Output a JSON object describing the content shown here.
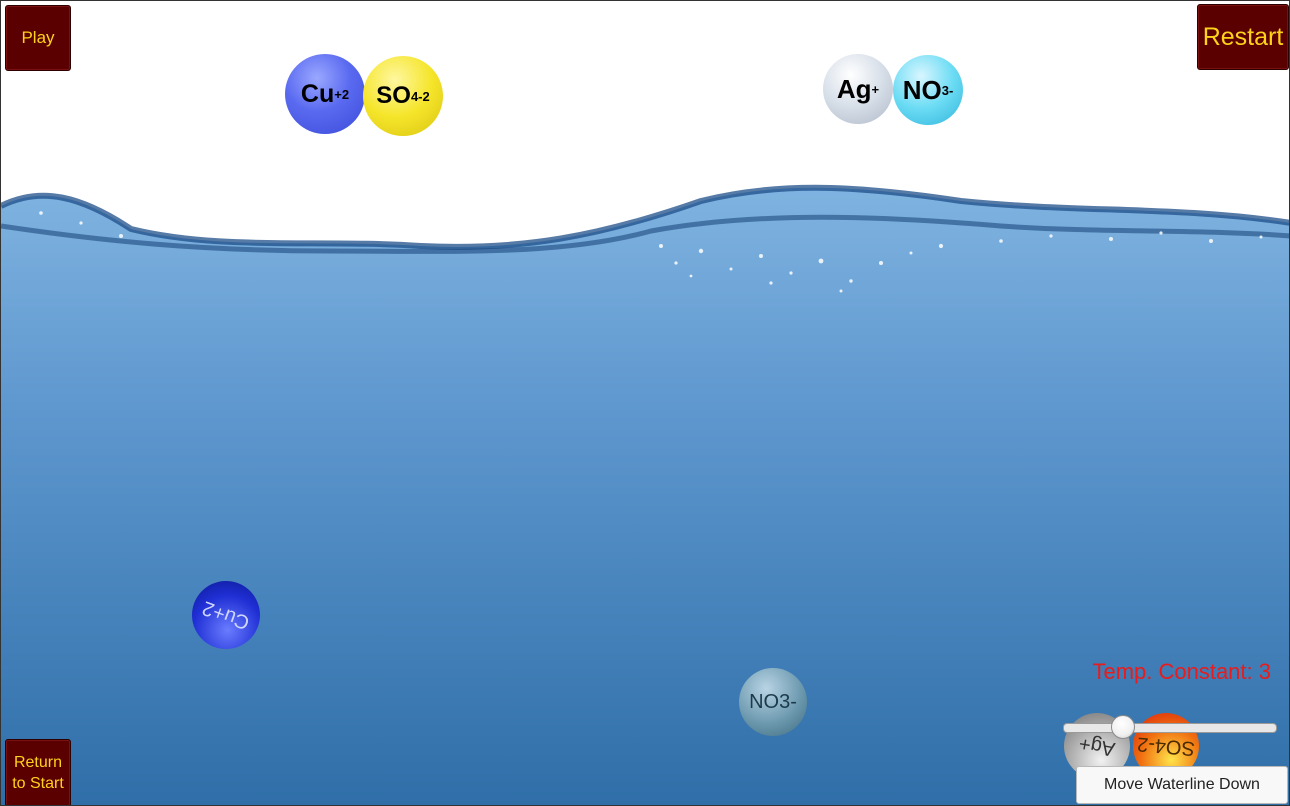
{
  "controls": {
    "play_label": "Play",
    "restart_label": "Restart",
    "return_label_line1": "Return",
    "return_label_line2": "to Start",
    "temp_label": "Temp. Constant: 3",
    "move_waterline_label": "Move Waterline Down",
    "temp_slider_fraction": 0.25
  },
  "ions_top": {
    "cu_base": "Cu",
    "cu_charge": "+2",
    "so4_base": "SO",
    "so4_sub": "4",
    "so4_charge": "-2",
    "ag_base": "Ag",
    "ag_charge": "+",
    "no3_base": "NO",
    "no3_sub": "3",
    "no3_charge": "-"
  },
  "ions_water": {
    "cu_label": "Cu+2",
    "no3_label": "NO3-",
    "ag_label": "Ag+",
    "so4_label": "SO4-2"
  },
  "colors": {
    "button_bg": "#5a0000",
    "button_text": "#ffd21a",
    "temp_text": "#e81c1c",
    "water_top": "#7fb3e0",
    "water_bottom": "#2f6ea8"
  }
}
